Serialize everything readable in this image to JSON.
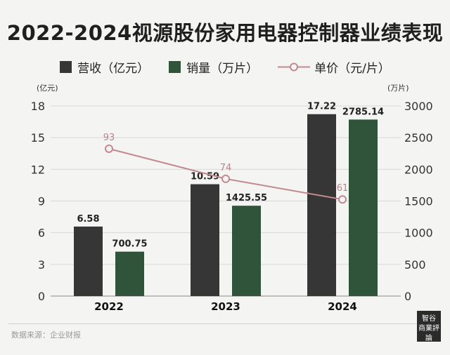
{
  "title": "2022-2024视源股份家用电器控制器业绩表现",
  "legend": {
    "revenue": "营收（亿元）",
    "sales": "销量（万片）",
    "price": "单价（元/片）"
  },
  "units": {
    "left": "(亿元)",
    "right": "(万片)"
  },
  "source": "数据来源：企业财报",
  "stamp": {
    "line1": "智谷",
    "line2": "商業評論"
  },
  "colors": {
    "revenue": "#363636",
    "sales": "#30543a",
    "price": "#c08a8f",
    "price_label": "#b8858a"
  },
  "chart_data": {
    "type": "bar",
    "title": "2022-2024视源股份家用电器控制器业绩表现",
    "categories": [
      "2022",
      "2023",
      "2024"
    ],
    "series": [
      {
        "name": "营收（亿元）",
        "axis": "left",
        "values": [
          6.58,
          10.59,
          17.22
        ]
      },
      {
        "name": "销量（万片）",
        "axis": "right",
        "values": [
          700.75,
          1425.55,
          2785.14
        ]
      },
      {
        "name": "单价（元/片）",
        "type": "line",
        "values": [
          93,
          74,
          61
        ]
      }
    ],
    "labels": {
      "revenue": [
        "6.58",
        "10.59",
        "17.22"
      ],
      "sales": [
        "700.75",
        "1425.55",
        "2785.14"
      ],
      "price": [
        "93",
        "74",
        "61"
      ]
    },
    "y_left": {
      "range": [
        0,
        18
      ],
      "ticks": [
        "0",
        "3",
        "6",
        "9",
        "12",
        "15",
        "18"
      ]
    },
    "y_right": {
      "range": [
        0,
        3000
      ],
      "ticks": [
        "0",
        "500",
        "1000",
        "1500",
        "2000",
        "2500",
        "3000"
      ]
    },
    "price_range": [
      0,
      120
    ]
  }
}
